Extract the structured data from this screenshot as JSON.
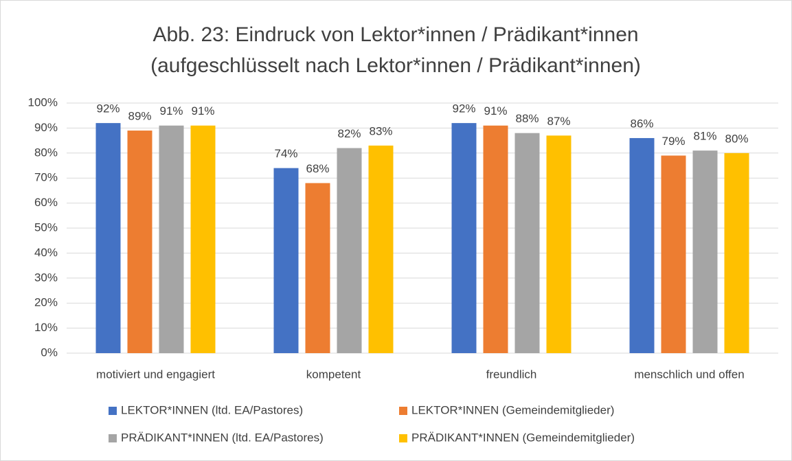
{
  "chart_data": {
    "type": "bar",
    "title": "Abb. 23: Eindruck von Lektor*innen / Prädikant*innen",
    "subtitle": "(aufgeschlüsselt nach Lektor*innen / Prädikant*innen)",
    "categories": [
      "motiviert und engagiert",
      "kompetent",
      "freundlich",
      "menschlich und offen"
    ],
    "series": [
      {
        "name": "LEKTOR*INNEN (ltd. EA/Pastores)",
        "color": "#4472c4",
        "values": [
          92,
          74,
          92,
          86
        ],
        "value_labels": [
          "92%",
          "74%",
          "92%",
          "86%"
        ]
      },
      {
        "name": "LEKTOR*INNEN (Gemeindemitglieder)",
        "color": "#ed7d31",
        "values": [
          89,
          68,
          91,
          79
        ],
        "value_labels": [
          "89%",
          "68%",
          "91%",
          "79%"
        ]
      },
      {
        "name": "PRÄDIKANT*INNEN (ltd. EA/Pastores)",
        "color": "#a5a5a5",
        "values": [
          91,
          82,
          88,
          81
        ],
        "value_labels": [
          "91%",
          "82%",
          "88%",
          "81%"
        ]
      },
      {
        "name": "PRÄDIKANT*INNEN (Gemeindemitglieder)",
        "color": "#ffc000",
        "values": [
          91,
          83,
          87,
          80
        ],
        "value_labels": [
          "91%",
          "83%",
          "87%",
          "80%"
        ]
      }
    ],
    "ylim": [
      0,
      100
    ],
    "yticks": [
      {
        "value": 0,
        "label": "0%"
      },
      {
        "value": 10,
        "label": "10%"
      },
      {
        "value": 20,
        "label": "20%"
      },
      {
        "value": 30,
        "label": "30%"
      },
      {
        "value": 40,
        "label": "40%"
      },
      {
        "value": 50,
        "label": "50%"
      },
      {
        "value": 60,
        "label": "60%"
      },
      {
        "value": 70,
        "label": "70%"
      },
      {
        "value": 80,
        "label": "80%"
      },
      {
        "value": 90,
        "label": "90%"
      },
      {
        "value": 100,
        "label": "100%"
      }
    ],
    "grid": true,
    "legend": "bottom"
  }
}
